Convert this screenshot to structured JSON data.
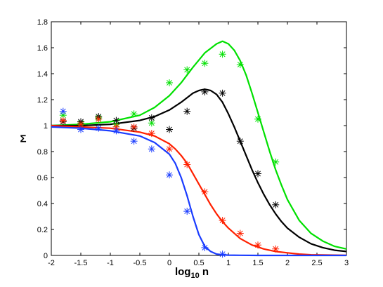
{
  "chart_data": {
    "type": "line",
    "xlabel": "log10 n",
    "xlabel_parts": {
      "base": "log",
      "sub": "10",
      "rest": " n"
    },
    "ylabel": "Σ",
    "xlim": [
      -2,
      3
    ],
    "ylim": [
      0,
      1.8
    ],
    "xticks": [
      "-2",
      "-1.5",
      "-1",
      "-0.5",
      "0",
      "0.5",
      "1",
      "1.5",
      "2",
      "2.5",
      "3"
    ],
    "yticks": [
      "0",
      "0.2",
      "0.4",
      "0.6",
      "0.8",
      "1",
      "1.2",
      "1.4",
      "1.6",
      "1.8"
    ],
    "grid": false,
    "legend": "none",
    "series": [
      {
        "color": "#00e000",
        "curve": {
          "x": [
            -2,
            -1.5,
            -1,
            -0.5,
            -0.25,
            0,
            0.2,
            0.4,
            0.6,
            0.8,
            0.9,
            1.0,
            1.1,
            1.2,
            1.3,
            1.4,
            1.5,
            1.6,
            1.7,
            1.8,
            1.9,
            2.0,
            2.2,
            2.4,
            2.6,
            2.8,
            3.0
          ],
          "y": [
            1.0,
            1.01,
            1.03,
            1.08,
            1.14,
            1.23,
            1.33,
            1.45,
            1.56,
            1.63,
            1.65,
            1.63,
            1.58,
            1.5,
            1.39,
            1.25,
            1.1,
            0.95,
            0.8,
            0.66,
            0.54,
            0.43,
            0.27,
            0.17,
            0.11,
            0.07,
            0.05
          ]
        },
        "points": {
          "x": [
            -1.8,
            -1.5,
            -1.2,
            -0.9,
            -0.6,
            -0.3,
            0,
            0.3,
            0.6,
            0.9,
            1.2,
            1.5,
            1.8
          ],
          "y": [
            1.08,
            1.02,
            1.06,
            1.01,
            1.09,
            1.02,
            1.33,
            1.43,
            1.48,
            1.55,
            1.47,
            1.05,
            0.72
          ]
        }
      },
      {
        "color": "#000000",
        "curve": {
          "x": [
            -2,
            -1.5,
            -1,
            -0.5,
            -0.25,
            0,
            0.2,
            0.4,
            0.5,
            0.6,
            0.7,
            0.8,
            0.9,
            1.0,
            1.1,
            1.2,
            1.3,
            1.4,
            1.5,
            1.6,
            1.7,
            1.8,
            1.9,
            2.0,
            2.2,
            2.4,
            2.6,
            2.8,
            3.0
          ],
          "y": [
            1.0,
            1.0,
            1.01,
            1.04,
            1.07,
            1.12,
            1.18,
            1.25,
            1.27,
            1.28,
            1.27,
            1.24,
            1.18,
            1.09,
            0.99,
            0.88,
            0.77,
            0.66,
            0.56,
            0.47,
            0.39,
            0.32,
            0.26,
            0.21,
            0.14,
            0.09,
            0.06,
            0.04,
            0.03
          ]
        },
        "points": {
          "x": [
            -1.8,
            -1.5,
            -1.2,
            -0.9,
            -0.6,
            -0.3,
            0,
            0.3,
            0.6,
            0.9,
            1.2,
            1.5,
            1.8
          ],
          "y": [
            1.03,
            1.03,
            1.07,
            1.04,
            0.98,
            1.06,
            0.97,
            1.11,
            1.26,
            1.25,
            0.88,
            0.63,
            0.39
          ]
        }
      },
      {
        "color": "#ff2000",
        "curve": {
          "x": [
            -2,
            -1.5,
            -1,
            -0.5,
            -0.25,
            0,
            0.1,
            0.2,
            0.3,
            0.4,
            0.5,
            0.6,
            0.7,
            0.8,
            0.9,
            1.0,
            1.2,
            1.4,
            1.6,
            1.8,
            2.0,
            2.2,
            2.4,
            2.6,
            2.8,
            3.0
          ],
          "y": [
            1.0,
            0.99,
            0.98,
            0.95,
            0.92,
            0.86,
            0.82,
            0.77,
            0.71,
            0.63,
            0.55,
            0.47,
            0.39,
            0.32,
            0.26,
            0.21,
            0.13,
            0.08,
            0.05,
            0.03,
            0.02,
            0.01,
            0.005,
            0.003,
            0.002,
            0.001
          ]
        },
        "points": {
          "x": [
            -1.8,
            -1.5,
            -1.2,
            -0.9,
            -0.6,
            -0.3,
            0,
            0.3,
            0.6,
            0.9,
            1.2,
            1.5,
            1.8
          ],
          "y": [
            1.04,
            1.01,
            1.05,
            0.99,
            0.99,
            0.94,
            0.82,
            0.7,
            0.49,
            0.27,
            0.17,
            0.08,
            0.05
          ]
        }
      },
      {
        "color": "#1a3cff",
        "curve": {
          "x": [
            -2,
            -1.5,
            -1,
            -0.5,
            -0.25,
            0,
            0.1,
            0.2,
            0.3,
            0.4,
            0.5,
            0.6,
            0.7,
            0.8,
            0.9,
            1.0,
            1.2,
            1.5,
            2.0,
            2.5,
            3.0
          ],
          "y": [
            0.99,
            0.98,
            0.96,
            0.92,
            0.87,
            0.78,
            0.71,
            0.6,
            0.46,
            0.3,
            0.16,
            0.07,
            0.03,
            0.01,
            0.005,
            0.002,
            0.001,
            0.0,
            0.0,
            0.0,
            0.0
          ]
        },
        "points": {
          "x": [
            -1.8,
            -1.5,
            -1.2,
            -0.9,
            -0.6,
            -0.3,
            0,
            0.3,
            0.6,
            0.9
          ],
          "y": [
            1.11,
            0.97,
            0.98,
            0.96,
            0.88,
            0.82,
            0.62,
            0.34,
            0.06,
            0.01
          ]
        }
      }
    ]
  }
}
